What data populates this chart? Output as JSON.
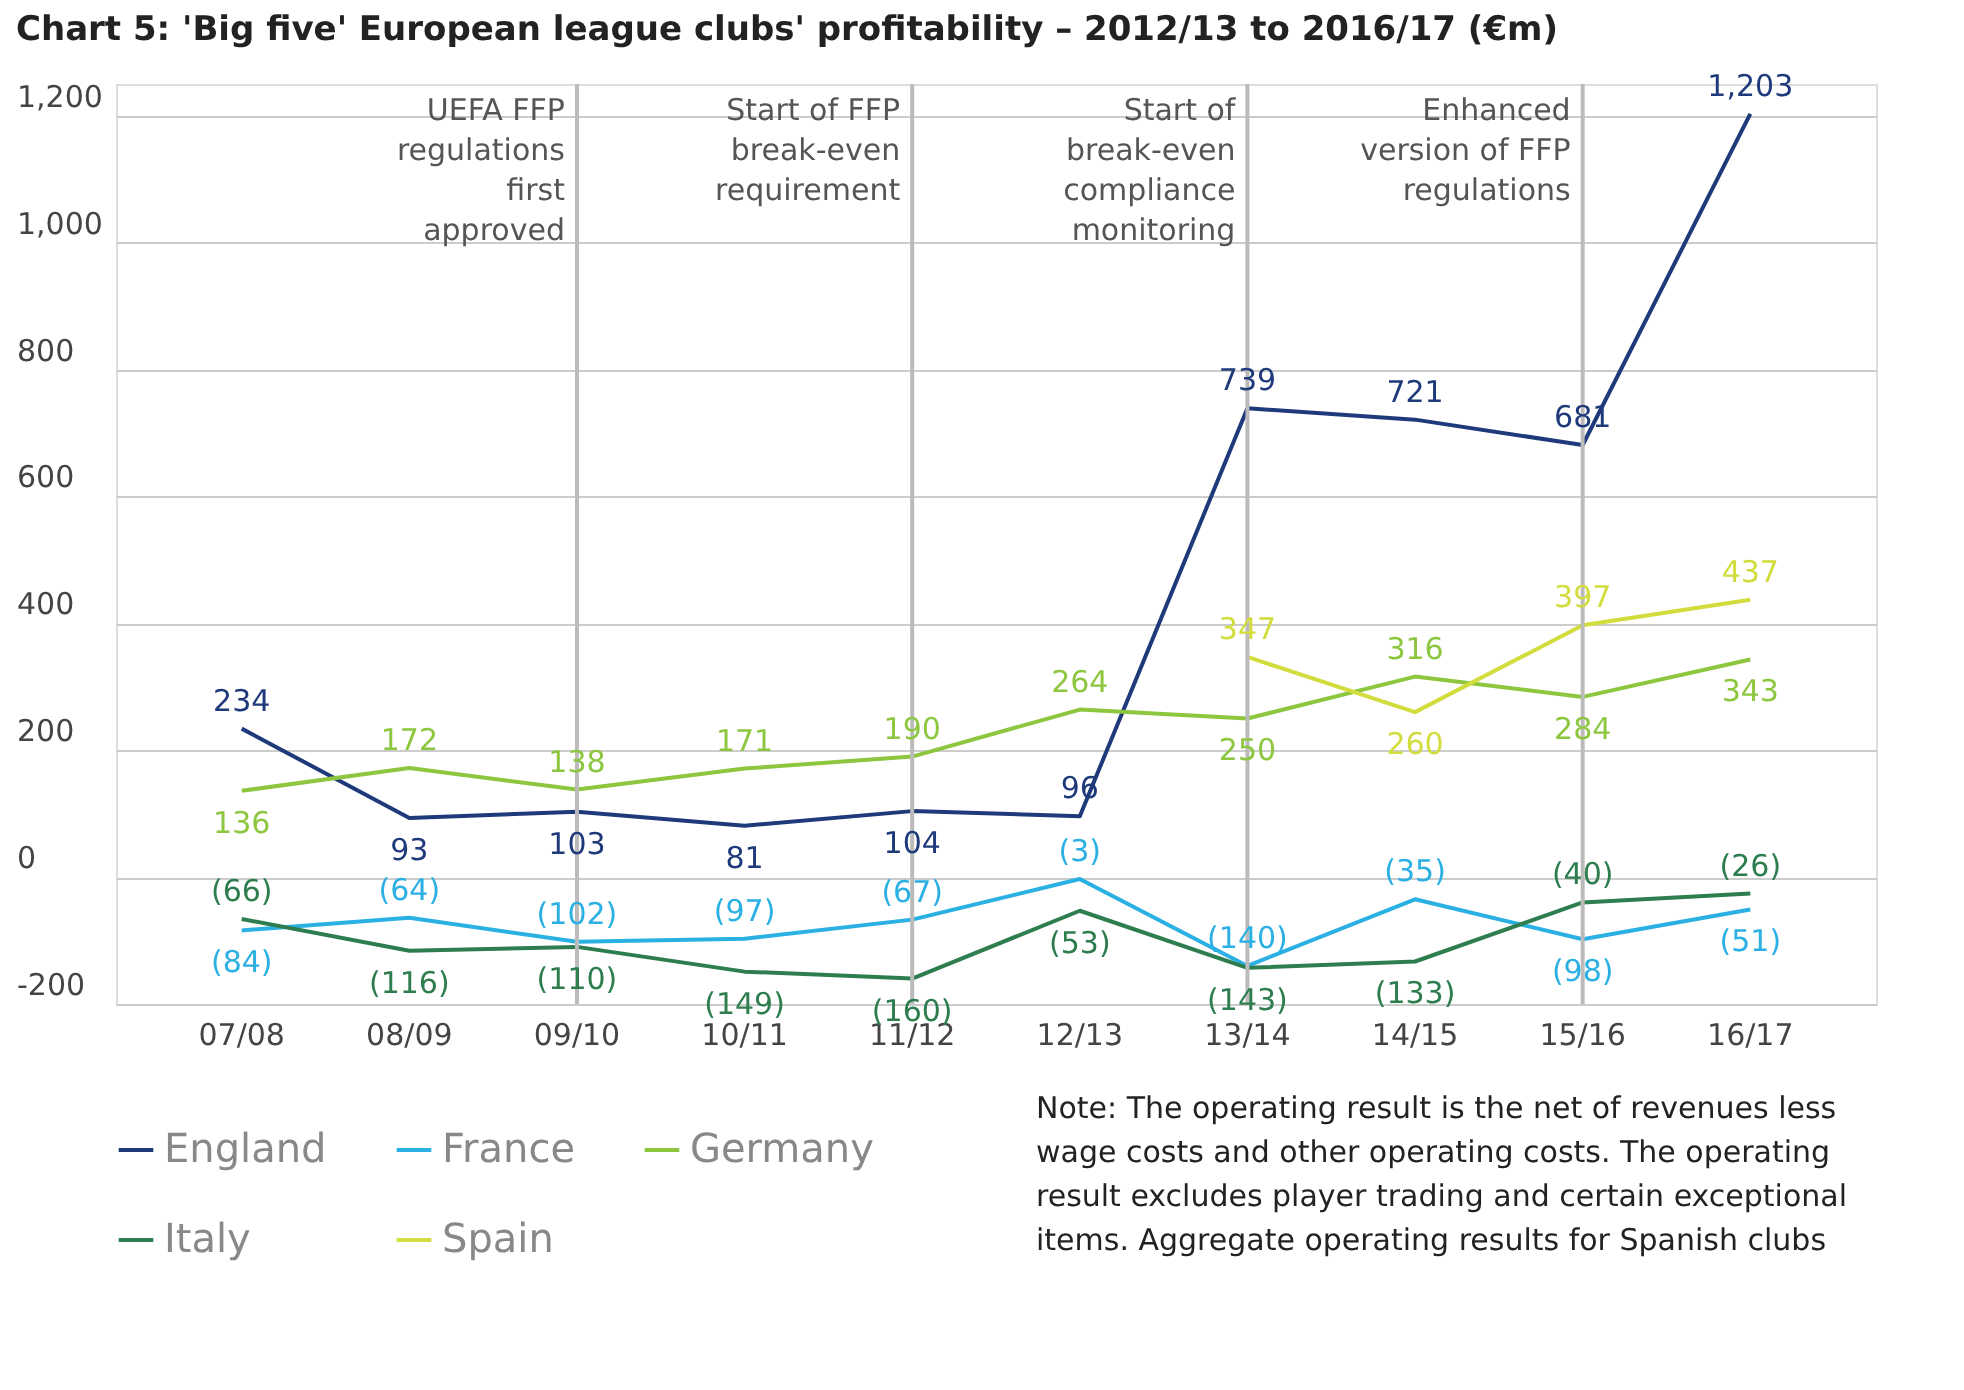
{
  "chart_data": {
    "type": "line",
    "title": "Chart 5: 'Big five' European league clubs' profitability – 2012/13 to 2016/17 (€m)",
    "categories": [
      "07/08",
      "08/09",
      "09/10",
      "10/11",
      "11/12",
      "12/13",
      "13/14",
      "14/15",
      "15/16",
      "16/17"
    ],
    "series": [
      {
        "name": "England",
        "color": "#1f3a7a",
        "values": [
          234,
          93,
          103,
          81,
          104,
          96,
          739,
          721,
          681,
          1203
        ],
        "value_labels": [
          "234",
          "93",
          "103",
          "81",
          "104",
          "96",
          "739",
          "721",
          "681",
          "1,203"
        ]
      },
      {
        "name": "France",
        "color": "#2bb0e4",
        "values": [
          -84,
          -64,
          -102,
          -97,
          -67,
          -3,
          -140,
          -35,
          -98,
          -51
        ],
        "value_labels": [
          "(84)",
          "(64)",
          "(102)",
          "(97)",
          "(67)",
          "(3)",
          "(140)",
          "(35)",
          "(98)",
          "(51)"
        ]
      },
      {
        "name": "Germany",
        "color": "#8dc63f",
        "values": [
          136,
          172,
          138,
          171,
          190,
          264,
          250,
          316,
          284,
          343
        ],
        "value_labels": [
          "136",
          "172",
          "138",
          "171",
          "190",
          "264",
          "250",
          "316",
          "284",
          "343"
        ]
      },
      {
        "name": "Italy",
        "color": "#2e7d4f",
        "values": [
          -66,
          -116,
          -110,
          -149,
          -160,
          -53,
          -143,
          -133,
          -40,
          -26
        ],
        "value_labels": [
          "(66)",
          "(116)",
          "(110)",
          "(149)",
          "(160)",
          "(53)",
          "(143)",
          "(133)",
          "(40)",
          "(26)"
        ]
      },
      {
        "name": "Spain",
        "color": "#d2dc3c",
        "values": [
          null,
          null,
          null,
          null,
          null,
          null,
          347,
          260,
          397,
          437
        ],
        "value_labels": [
          null,
          null,
          null,
          null,
          null,
          null,
          "347",
          "260",
          "397",
          "437"
        ]
      }
    ],
    "ylim": [
      -200,
      1250
    ],
    "yticks": [
      -200,
      {
        "value": 0,
        "label": "0"
      },
      200,
      400,
      600,
      800,
      {
        "value": 1000,
        "label": "1,000"
      },
      {
        "value": 1200,
        "label": "1,200"
      }
    ],
    "ref_lines": [
      {
        "axis": "x",
        "value": "09/10",
        "label": "UEFA FFP\nregulations\nfirst\napproved",
        "color": "#bbbbbb"
      },
      {
        "axis": "x",
        "value": "11/12",
        "label": "Start of FFP\nbreak-even\nrequirement",
        "color": "#bbbbbb"
      },
      {
        "axis": "x",
        "value": "13/14",
        "label": "Start of\nbreak-even\ncompliance\nmonitoring",
        "color": "#bbbbbb"
      },
      {
        "axis": "x",
        "value": "15/16",
        "label": "Enhanced\nversion of FFP\nregulations",
        "color": "#bbbbbb"
      }
    ],
    "annotations": [
      "Note: The operating result is the net of revenues less\nwage costs and other operating costs. The operating\nresult excludes player trading and certain exceptional\nitems. Aggregate operating results for Spanish clubs"
    ],
    "grid": "y",
    "legend": "bottom left",
    "marker": "none",
    "line_style": "solid"
  }
}
